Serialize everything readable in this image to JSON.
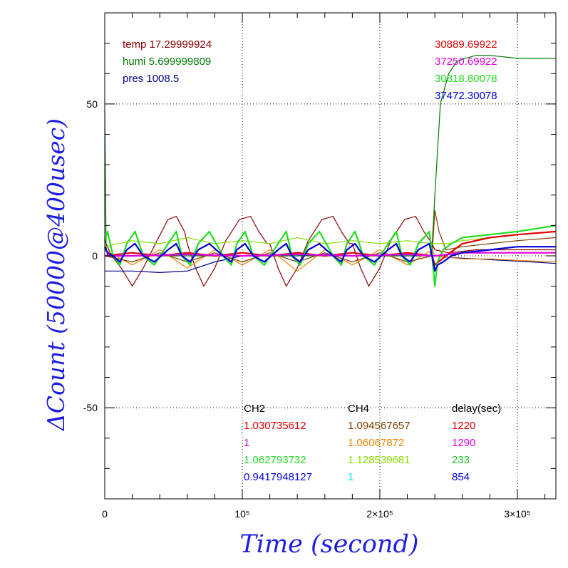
{
  "chart_data": {
    "type": "line",
    "xlabel": "Time (second)",
    "ylabel": "ΔCount (50000@400usec)",
    "xlim": [
      0,
      328000
    ],
    "ylim": [
      -80,
      80
    ],
    "x_ticks": [
      {
        "value": 0,
        "label": "0"
      },
      {
        "value": 100000,
        "label": "10⁵"
      },
      {
        "value": 200000,
        "label": "2×10⁵"
      },
      {
        "value": 300000,
        "label": "3×10⁵"
      }
    ],
    "y_ticks": [
      {
        "value": -50,
        "label": "-50"
      },
      {
        "value": 0,
        "label": "0"
      },
      {
        "value": 50,
        "label": "50"
      }
    ],
    "grid": "dotted at major ticks",
    "env_info": [
      {
        "text": "temp 17.29999924",
        "color": "#8b0000"
      },
      {
        "text": "humi 5.699999809",
        "color": "#007a00"
      },
      {
        "text": "pres 1008.5",
        "color": "#00008b"
      }
    ],
    "ref_values": [
      {
        "text": "30889.69922",
        "color": "#e00000"
      },
      {
        "text": "37250.69922",
        "color": "#e000e0"
      },
      {
        "text": "30818.80078",
        "color": "#22dd22"
      },
      {
        "text": "37472.30078",
        "color": "#0000e0"
      }
    ],
    "table": {
      "headers": [
        "CH2",
        "CH4",
        "delay(sec)"
      ],
      "rows": [
        {
          "ch2": "1.030735612",
          "ch2_color": "#e00000",
          "ch4": "1.094567657",
          "ch4_color": "#7a4000",
          "delay": "1220",
          "delay_color": "#e00000"
        },
        {
          "ch2": "1",
          "ch2_color": "#d000d0",
          "ch4": "1.06067872",
          "ch4_color": "#f08000",
          "delay": "1290",
          "delay_color": "#e000e0"
        },
        {
          "ch2": "1.062793732",
          "ch2_color": "#22dd22",
          "ch4": "1.128539681",
          "ch4_color": "#88dd00",
          "delay": "233",
          "delay_color": "#22bb22"
        },
        {
          "ch2": "0.9417948127",
          "ch2_color": "#0000e0",
          "ch4": "1",
          "ch4_color": "#00dddd",
          "delay": "854",
          "delay_color": "#0000e0"
        }
      ]
    },
    "series": [
      {
        "color": "#8b0000",
        "x": [
          0,
          5000,
          12000,
          20000,
          28000,
          38000,
          46000,
          52000,
          58000,
          60000,
          66000,
          72000,
          80000,
          88000,
          98000,
          106000,
          112000,
          118000,
          120000,
          126000,
          132000,
          140000,
          148000,
          158000,
          166000,
          172000,
          178000,
          180000,
          186000,
          192000,
          200000,
          208000,
          218000,
          226000,
          232000,
          238000,
          240000,
          250000,
          270000,
          300000,
          328000
        ],
        "y": [
          5,
          0,
          -4,
          -10,
          -4,
          5,
          12,
          13,
          8,
          4,
          -4,
          -10,
          -4,
          5,
          12,
          13,
          8,
          4,
          4,
          -4,
          -10,
          -4,
          5,
          12,
          13,
          8,
          4,
          4,
          -4,
          -10,
          -4,
          5,
          12,
          13,
          8,
          4,
          2,
          1,
          2,
          2,
          2
        ]
      },
      {
        "color": "#00008b",
        "x": [
          0,
          20000,
          40000,
          60000,
          80000,
          100000,
          120000,
          140000,
          160000,
          180000,
          200000,
          220000,
          240000,
          250000,
          270000,
          290000,
          310000,
          328000
        ],
        "y": [
          -5,
          -5,
          -5.5,
          -5,
          -2,
          0,
          0,
          0,
          0.5,
          0,
          0,
          0,
          0,
          -0.5,
          -1,
          -1.5,
          -2,
          -2.5
        ]
      },
      {
        "color": "#007a00",
        "x": [
          0,
          1000,
          2000,
          40000,
          100000,
          200000,
          236000,
          238000,
          240000,
          244000,
          250000,
          256000,
          262000,
          270000,
          280000,
          300000,
          328000
        ],
        "y": [
          48,
          3,
          0,
          0,
          0,
          0,
          0,
          3,
          20,
          50,
          60,
          64,
          65,
          66,
          66,
          65,
          65
        ]
      },
      {
        "color": "#f08000",
        "x": [
          0,
          20000,
          40000,
          60000,
          80000,
          100000,
          120000,
          140000,
          160000,
          180000,
          200000,
          220000,
          238000,
          240000,
          260000,
          280000,
          300000,
          328000
        ],
        "y": [
          2,
          -3,
          2,
          -4,
          2,
          -3,
          2,
          -5,
          2,
          -3,
          2,
          -3,
          2,
          0,
          -1,
          -1,
          -1.5,
          -2
        ]
      },
      {
        "color": "#7a4000",
        "x": [
          0,
          20000,
          40000,
          60000,
          80000,
          100000,
          120000,
          140000,
          160000,
          180000,
          200000,
          220000,
          238000,
          240000,
          243000,
          248000,
          260000,
          280000,
          300000,
          328000
        ],
        "y": [
          0,
          -2,
          1,
          -2,
          1,
          -2,
          1,
          -2,
          1,
          -2,
          1,
          -2,
          0,
          15,
          8,
          2,
          3,
          4,
          5,
          6
        ]
      },
      {
        "color": "#88dd00",
        "x": [
          0,
          20000,
          40000,
          60000,
          80000,
          100000,
          120000,
          140000,
          160000,
          180000,
          200000,
          220000,
          238000,
          240000,
          250000,
          260000,
          280000,
          300000,
          328000
        ],
        "y": [
          3,
          5,
          4,
          6,
          4,
          5,
          4,
          6,
          4,
          5,
          4,
          5,
          4,
          4,
          4,
          5,
          6,
          7,
          8
        ]
      },
      {
        "color": "#e00000",
        "x": [
          0,
          20000,
          40000,
          60000,
          80000,
          100000,
          120000,
          140000,
          160000,
          180000,
          200000,
          220000,
          238000,
          240000,
          248000,
          260000,
          280000,
          300000,
          328000
        ],
        "y": [
          0,
          1,
          0,
          1,
          0,
          1,
          0,
          1,
          0,
          1,
          0,
          1,
          0,
          -3,
          0,
          4,
          6,
          7,
          8
        ]
      },
      {
        "color": "#22dd22",
        "x": [
          0,
          2000,
          6000,
          11000,
          16000,
          22000,
          28000,
          36000,
          46000,
          52000,
          56000,
          62000,
          68000,
          76000,
          86000,
          92000,
          96000,
          102000,
          108000,
          116000,
          126000,
          132000,
          136000,
          142000,
          148000,
          156000,
          166000,
          172000,
          176000,
          182000,
          188000,
          196000,
          206000,
          212000,
          216000,
          222000,
          228000,
          236000,
          238000,
          240000,
          242000,
          246000,
          252000,
          260000,
          280000,
          300000,
          328000
        ],
        "y": [
          5,
          8,
          0,
          -3,
          4,
          8,
          0,
          -3,
          4,
          8,
          0,
          -3,
          4,
          8,
          0,
          -3,
          4,
          8,
          0,
          -3,
          4,
          8,
          0,
          -3,
          4,
          8,
          0,
          -3,
          4,
          8,
          0,
          -3,
          4,
          8,
          0,
          -3,
          4,
          8,
          0,
          -10,
          -2,
          2,
          4,
          6,
          7,
          8,
          10
        ]
      },
      {
        "color": "#e000e0",
        "x": [
          0,
          20000,
          60000,
          100000,
          140000,
          180000,
          220000,
          238000,
          240000,
          260000,
          290000,
          328000
        ],
        "y": [
          0,
          0,
          0.5,
          0,
          0.5,
          0,
          0.5,
          0,
          0,
          1,
          1,
          1
        ]
      },
      {
        "color": "#0000e0",
        "x": [
          0,
          2000,
          6000,
          11000,
          16000,
          22000,
          28000,
          36000,
          46000,
          52000,
          56000,
          62000,
          68000,
          76000,
          86000,
          92000,
          96000,
          102000,
          108000,
          116000,
          126000,
          132000,
          136000,
          142000,
          148000,
          156000,
          166000,
          172000,
          176000,
          182000,
          188000,
          196000,
          206000,
          212000,
          216000,
          222000,
          228000,
          236000,
          238000,
          240000,
          242000,
          246000,
          252000,
          260000,
          280000,
          300000,
          328000
        ],
        "y": [
          3,
          1,
          0,
          -2,
          2,
          4,
          0,
          -2,
          2,
          4,
          0,
          -2,
          2,
          4,
          0,
          -2,
          2,
          4,
          0,
          -2,
          2,
          4,
          0,
          -2,
          2,
          4,
          0,
          -2,
          2,
          4,
          0,
          -2,
          2,
          4,
          0,
          -2,
          2,
          4,
          0,
          -5,
          -3,
          -2,
          0,
          1,
          2,
          3,
          3
        ]
      }
    ]
  }
}
